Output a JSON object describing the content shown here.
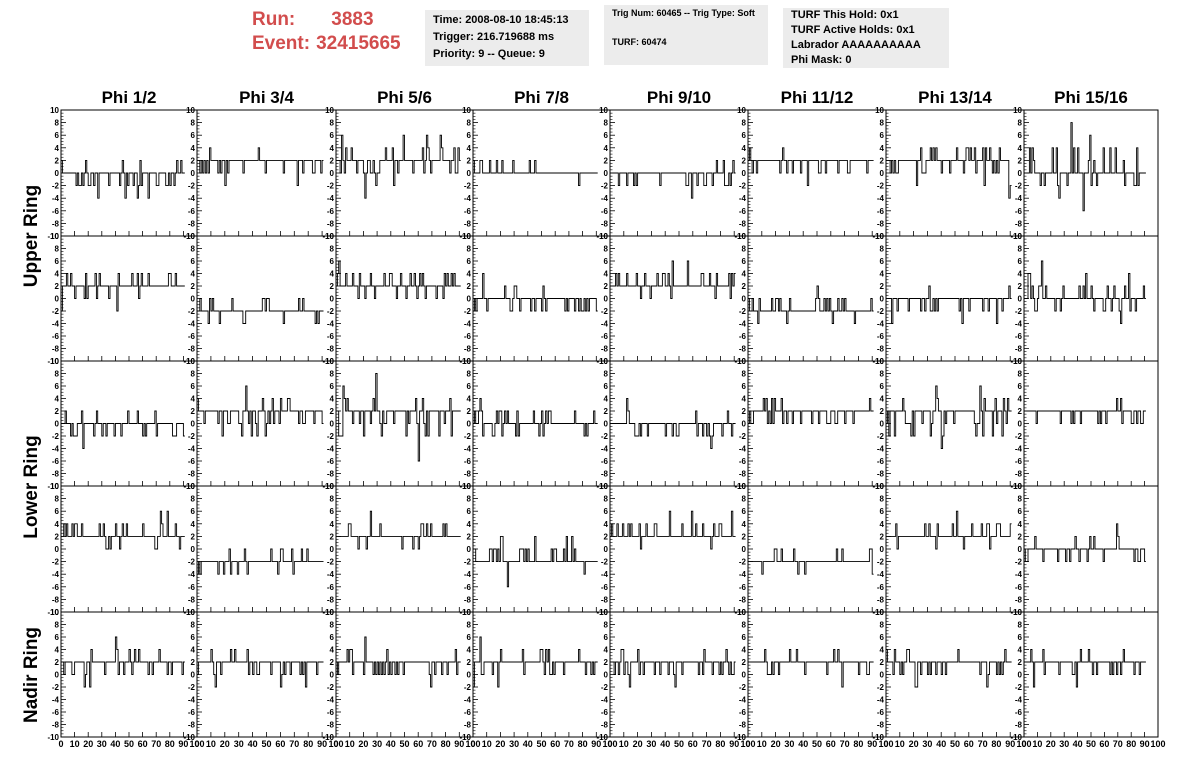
{
  "header": {
    "run_label": "Run:",
    "run_value": "3883",
    "event_label": "Event:",
    "event_value": "32415665",
    "time": "Time: 2008-08-10 18:45:13",
    "trigger": "Trigger: 216.719688 ms",
    "priority": "Priority: 9 -- Queue: 9",
    "trig_num": "Trig Num: 60465 -- Trig Type: Soft",
    "turf": "TURF: 60474",
    "turf_this_hold": "TURF This Hold: 0x1",
    "turf_active_holds": "TURF Active Holds: 0x1",
    "labrador": "Labrador AAAAAAAAAA",
    "phi_mask": "Phi Mask: 0"
  },
  "colors": {
    "accent": "#d24d4d",
    "infobox_bg": "#ececec",
    "trace": "#000000"
  },
  "chart_data": {
    "type": "line",
    "columns": [
      "Phi 1/2",
      "Phi 3/4",
      "Phi 5/6",
      "Phi 7/8",
      "Phi 9/10",
      "Phi 11/12",
      "Phi 13/14",
      "Phi 15/16"
    ],
    "row_groups": [
      "Upper Ring",
      "Lower Ring",
      "Nadir Ring"
    ],
    "rows_per_group": [
      2,
      2,
      1
    ],
    "xlim": [
      0,
      100
    ],
    "ylim": [
      -10,
      10
    ],
    "x_ticks": [
      0,
      10,
      20,
      30,
      40,
      50,
      60,
      70,
      80,
      90,
      100
    ],
    "x_tick_labels": [
      "0",
      "10",
      "20",
      "30",
      "40",
      "50",
      "60",
      "70",
      "80",
      "90",
      "100"
    ],
    "y_ticks": [
      -10,
      -8,
      -6,
      -4,
      -2,
      0,
      2,
      4,
      6,
      8,
      10
    ],
    "y_tick_labels": [
      "-10",
      "-8",
      "-6",
      "-4",
      "-2",
      "0",
      "2",
      "4",
      "6",
      "8",
      "10"
    ],
    "samples_per_trace": 91,
    "panel_baselines": [
      [
        -1,
        1,
        2,
        0.5,
        -1,
        1,
        1,
        0
      ],
      [
        2,
        -2,
        2,
        -1,
        2,
        -2,
        -1,
        0
      ],
      [
        -1,
        1,
        1,
        0,
        -1,
        1,
        1,
        1
      ],
      [
        2,
        -2,
        2,
        -2,
        2,
        -2,
        2,
        -1
      ],
      [
        1,
        1,
        1,
        1,
        1,
        1,
        1,
        1
      ]
    ],
    "panel_spread": [
      [
        2,
        2,
        3,
        1.5,
        2,
        2,
        3,
        4
      ],
      [
        2,
        2,
        2,
        2,
        2,
        2,
        2,
        3
      ],
      [
        2,
        3,
        4,
        2,
        2,
        2,
        3,
        1.5
      ],
      [
        2,
        2,
        2,
        2,
        2,
        2,
        2,
        2
      ],
      [
        2,
        2,
        2,
        2,
        2,
        2,
        2,
        2
      ]
    ]
  }
}
